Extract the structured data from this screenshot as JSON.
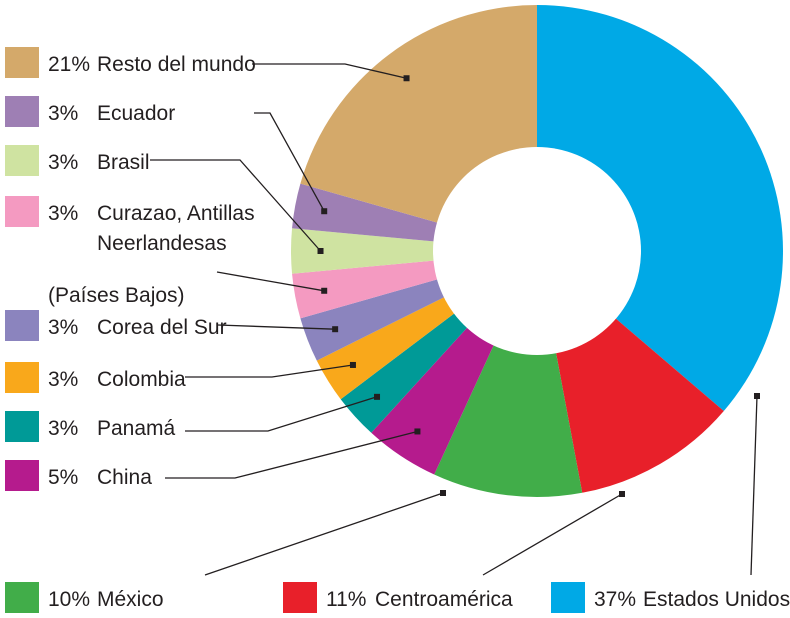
{
  "chart_data": {
    "type": "pie",
    "subtype": "donut",
    "start_angle_deg": 0,
    "direction": "clockwise",
    "slices": [
      {
        "label": "Estados Unidos",
        "pct_text": "37%",
        "value": 37,
        "color": "#00a9e6"
      },
      {
        "label": "Centroamérica",
        "pct_text": "11%",
        "value": 11,
        "color": "#e8202a"
      },
      {
        "label": "México",
        "pct_text": "10%",
        "value": 10,
        "color": "#41ad49"
      },
      {
        "label": "China",
        "pct_text": "5%",
        "value": 5,
        "color": "#b51b8d"
      },
      {
        "label": "Panamá",
        "pct_text": "3%",
        "value": 3,
        "color": "#009a97"
      },
      {
        "label": "Colombia",
        "pct_text": "3%",
        "value": 3,
        "color": "#f9a81b"
      },
      {
        "label": "Corea del Sur",
        "pct_text": "3%",
        "value": 3,
        "color": "#8b84be"
      },
      {
        "label": "Curazao, Antillas Neerlandesas (Países Bajos)",
        "label_lines": [
          "Curazao, Antillas",
          "Neerlandesas",
          "(Países Bajos)"
        ],
        "pct_text": "3%",
        "value": 3,
        "color": "#f49ac1"
      },
      {
        "label": "Brasil",
        "pct_text": "3%",
        "value": 3,
        "color": "#cfe3a1"
      },
      {
        "label": "Ecuador",
        "pct_text": "3%",
        "value": 3,
        "color": "#9e7fb4"
      },
      {
        "label": "Resto del mundo",
        "pct_text": "21%",
        "value": 21,
        "color": "#d4a96a"
      }
    ],
    "legend": "left-and-bottom"
  }
}
